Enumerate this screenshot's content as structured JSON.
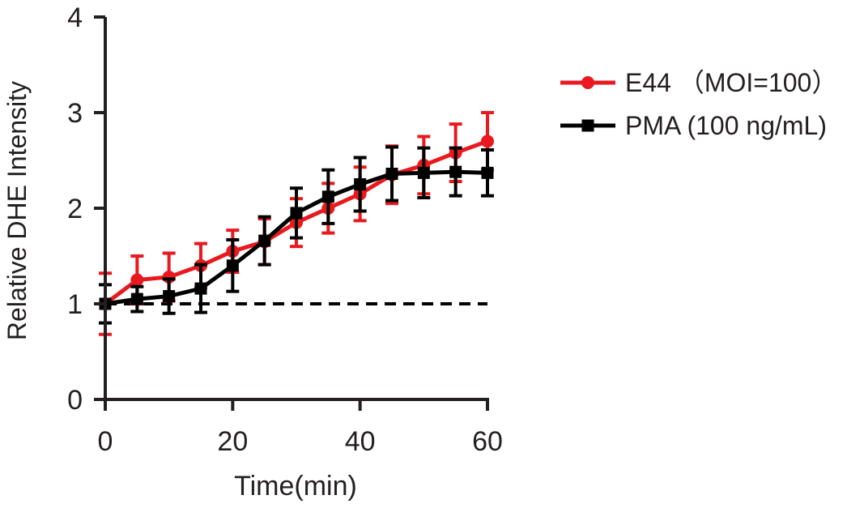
{
  "chart_data": {
    "type": "line",
    "xlabel": "Time(min)",
    "ylabel": "Relative DHE Intensity",
    "xlim": [
      0,
      60
    ],
    "ylim": [
      0,
      4
    ],
    "xticks": [
      0,
      20,
      40,
      60
    ],
    "yticks": [
      0,
      1,
      2,
      3,
      4
    ],
    "x": [
      0,
      5,
      10,
      15,
      20,
      25,
      30,
      35,
      40,
      45,
      50,
      55,
      60
    ],
    "series": [
      {
        "name": "E44 （MOI=100）",
        "color": "#e8191f",
        "marker": "circle",
        "values": [
          1.0,
          1.25,
          1.28,
          1.4,
          1.55,
          1.65,
          1.85,
          2.0,
          2.15,
          2.35,
          2.45,
          2.58,
          2.7
        ],
        "errors": [
          0.32,
          0.25,
          0.25,
          0.23,
          0.22,
          0.24,
          0.25,
          0.26,
          0.28,
          0.3,
          0.3,
          0.3,
          0.3
        ]
      },
      {
        "name": "PMA (100 ng/mL)",
        "color": "#000000",
        "marker": "square",
        "values": [
          1.0,
          1.05,
          1.08,
          1.16,
          1.4,
          1.66,
          1.95,
          2.12,
          2.25,
          2.36,
          2.37,
          2.38,
          2.37
        ],
        "errors": [
          0.2,
          0.13,
          0.18,
          0.25,
          0.27,
          0.25,
          0.26,
          0.28,
          0.28,
          0.28,
          0.26,
          0.25,
          0.24
        ]
      }
    ],
    "reference_line": {
      "y": 1,
      "x_range": [
        0,
        60
      ],
      "style": "dashed"
    },
    "legend_position": "top-right",
    "grid": false
  }
}
